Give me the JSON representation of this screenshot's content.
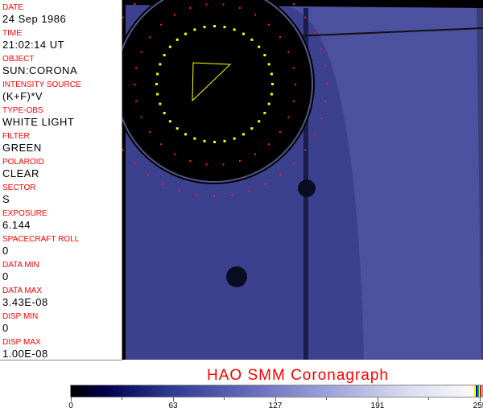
{
  "fields": [
    {
      "label": "DATE",
      "value": "24 Sep 1986"
    },
    {
      "label": "TIME",
      "value": "21:02:14 UT"
    },
    {
      "label": "OBJECT",
      "value": "SUN:CORONA"
    },
    {
      "label": "INTENSITY SOURCE",
      "value": "(K+F)*V"
    },
    {
      "label": "TYPE-OBS",
      "value": "WHITE LIGHT"
    },
    {
      "label": "FILTER",
      "value": "GREEN"
    },
    {
      "label": "POLAROID",
      "value": "CLEAR"
    },
    {
      "label": "SECTOR",
      "value": "S"
    },
    {
      "label": "EXPOSURE",
      "value": "6.144"
    },
    {
      "label": "SPACECRAFT ROLL",
      "value": "0"
    },
    {
      "label": "DATA MIN",
      "value": "0"
    },
    {
      "label": "DATA MAX",
      "value": "3.43E-08"
    },
    {
      "label": "DISP MIN",
      "value": "0"
    },
    {
      "label": "DISP MAX",
      "value": "1.00E-08"
    }
  ],
  "title": "HAO  SMM  Coronagraph",
  "colorbar": {
    "ticks": [
      "0",
      "63",
      "127",
      "191",
      "255"
    ],
    "colors": {
      "low": "#000000",
      "mid": "#6a6fbe",
      "high": "#f8f8f8"
    },
    "end_markers": [
      "#ffff00",
      "#0000ff",
      "#00c000",
      "#ff0000"
    ]
  }
}
